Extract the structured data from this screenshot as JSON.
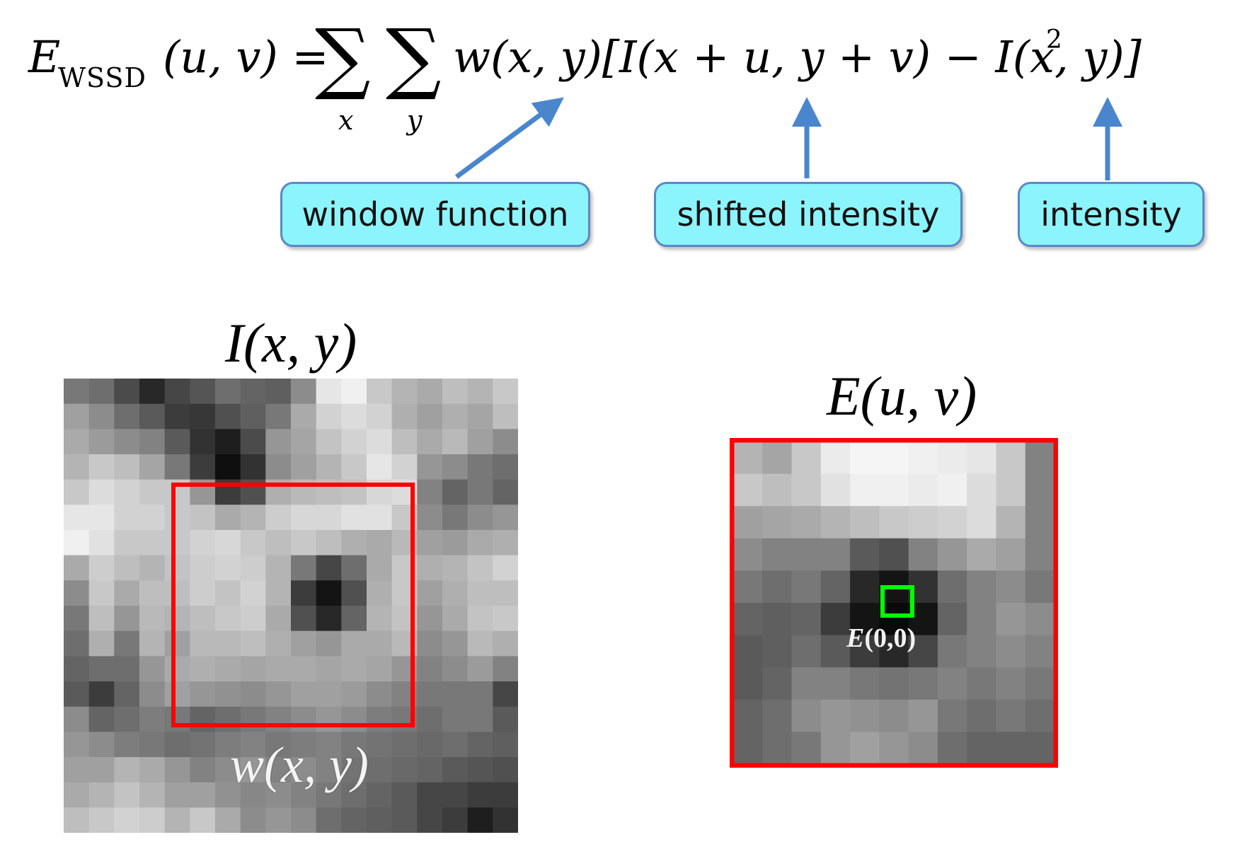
{
  "formula": {
    "lhs_symbol": "E",
    "lhs_subscript": "WSSD",
    "lhs_args": "(u, v) =",
    "sum_index_1": "x",
    "sum_index_2": "y",
    "rhs": "w(x, y)[I(x + u, y + v) − I(x, y)]",
    "exponent": "2"
  },
  "callouts": {
    "window_function": "window function",
    "shifted_intensity": "shifted intensity",
    "intensity": "intensity"
  },
  "colors": {
    "callout_fill": "#8cf4fd",
    "callout_border": "#5b88c6",
    "arrow": "#4a86cc",
    "window_box": "#ff0000",
    "error_frame": "#ff0000",
    "origin_marker": "#00ff00"
  },
  "left_panel": {
    "title": "I(x, y)",
    "window_label": "w(x, y)",
    "grid": [
      [
        120,
        110,
        75,
        40,
        70,
        85,
        110,
        100,
        95,
        140,
        230,
        240,
        200,
        180,
        170,
        190,
        180,
        200
      ],
      [
        160,
        140,
        110,
        90,
        60,
        55,
        80,
        95,
        120,
        170,
        210,
        220,
        210,
        175,
        160,
        175,
        165,
        190
      ],
      [
        170,
        155,
        140,
        130,
        90,
        50,
        30,
        75,
        150,
        165,
        195,
        210,
        220,
        190,
        170,
        185,
        160,
        140
      ],
      [
        180,
        200,
        190,
        165,
        120,
        60,
        15,
        50,
        140,
        160,
        180,
        200,
        230,
        210,
        150,
        140,
        120,
        110
      ],
      [
        200,
        220,
        210,
        200,
        200,
        150,
        60,
        80,
        175,
        185,
        190,
        195,
        215,
        220,
        130,
        100,
        120,
        100
      ],
      [
        230,
        230,
        210,
        210,
        200,
        195,
        170,
        180,
        205,
        215,
        215,
        225,
        225,
        200,
        140,
        120,
        140,
        150
      ],
      [
        240,
        225,
        200,
        200,
        200,
        210,
        215,
        200,
        190,
        200,
        190,
        175,
        170,
        185,
        160,
        155,
        170,
        175
      ],
      [
        170,
        205,
        190,
        180,
        195,
        205,
        210,
        205,
        180,
        120,
        70,
        110,
        170,
        200,
        175,
        180,
        195,
        210
      ],
      [
        140,
        200,
        170,
        190,
        190,
        205,
        195,
        210,
        180,
        60,
        20,
        80,
        175,
        200,
        160,
        175,
        190,
        190
      ],
      [
        120,
        190,
        150,
        185,
        180,
        190,
        200,
        205,
        170,
        80,
        40,
        100,
        180,
        195,
        150,
        170,
        195,
        200
      ],
      [
        110,
        175,
        120,
        180,
        160,
        185,
        185,
        190,
        175,
        160,
        150,
        170,
        170,
        185,
        140,
        150,
        185,
        175
      ],
      [
        100,
        110,
        110,
        150,
        170,
        175,
        170,
        165,
        170,
        170,
        165,
        170,
        165,
        150,
        130,
        140,
        155,
        130
      ],
      [
        90,
        60,
        100,
        140,
        160,
        150,
        145,
        140,
        150,
        160,
        160,
        155,
        140,
        130,
        120,
        120,
        120,
        70
      ],
      [
        140,
        100,
        110,
        125,
        120,
        100,
        110,
        120,
        130,
        140,
        150,
        140,
        125,
        120,
        110,
        120,
        120,
        90
      ],
      [
        150,
        140,
        125,
        120,
        110,
        115,
        125,
        130,
        120,
        125,
        130,
        120,
        115,
        110,
        105,
        110,
        100,
        95
      ],
      [
        160,
        160,
        180,
        170,
        150,
        130,
        140,
        150,
        130,
        140,
        130,
        115,
        110,
        105,
        100,
        90,
        85,
        80
      ],
      [
        170,
        180,
        195,
        180,
        160,
        160,
        145,
        135,
        140,
        130,
        120,
        110,
        100,
        90,
        70,
        70,
        60,
        60
      ],
      [
        190,
        200,
        210,
        205,
        180,
        200,
        170,
        140,
        150,
        140,
        110,
        100,
        95,
        90,
        70,
        60,
        30,
        50
      ]
    ]
  },
  "right_panel": {
    "title": "E(u, v)",
    "origin_label_func": "E",
    "origin_label_args": "(0,0)",
    "grid": [
      [
        180,
        165,
        200,
        235,
        245,
        245,
        240,
        235,
        230,
        200,
        130
      ],
      [
        200,
        190,
        200,
        225,
        240,
        240,
        235,
        240,
        220,
        200,
        130
      ],
      [
        160,
        165,
        170,
        180,
        190,
        200,
        205,
        210,
        220,
        180,
        130
      ],
      [
        140,
        130,
        130,
        130,
        90,
        80,
        130,
        150,
        170,
        160,
        130
      ],
      [
        120,
        110,
        120,
        100,
        40,
        20,
        50,
        110,
        130,
        140,
        120
      ],
      [
        100,
        95,
        100,
        60,
        20,
        10,
        20,
        100,
        130,
        150,
        140
      ],
      [
        90,
        95,
        110,
        90,
        60,
        40,
        70,
        120,
        130,
        140,
        130
      ],
      [
        90,
        100,
        130,
        130,
        120,
        115,
        120,
        130,
        120,
        130,
        120
      ],
      [
        100,
        110,
        140,
        150,
        145,
        140,
        150,
        120,
        110,
        120,
        110
      ],
      [
        100,
        110,
        120,
        150,
        160,
        150,
        140,
        110,
        100,
        100,
        100
      ]
    ]
  }
}
